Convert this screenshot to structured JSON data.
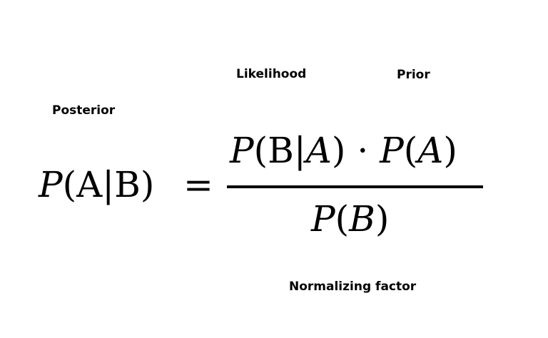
{
  "labels": {
    "likelihood": "Likelihood",
    "prior": "Prior",
    "posterior": "Posterior",
    "normalizing_factor": "Normalizing factor"
  },
  "formula": {
    "lhs": {
      "p": "P",
      "open": "(",
      "a": "A",
      "bar": "|",
      "b": "B",
      "close": ")"
    },
    "equals": "=",
    "numerator": {
      "p1": "P",
      "open1": "(",
      "b": "B",
      "bar": "|",
      "a": "A",
      "close1": ")",
      "dot": "·",
      "p2": "P",
      "open2": "(",
      "a2": "A",
      "close2": ")"
    },
    "denominator": {
      "p": "P",
      "open": "(",
      "b": "B",
      "close": ")"
    }
  },
  "colors": {
    "text": "#000000",
    "background": "#ffffff"
  }
}
